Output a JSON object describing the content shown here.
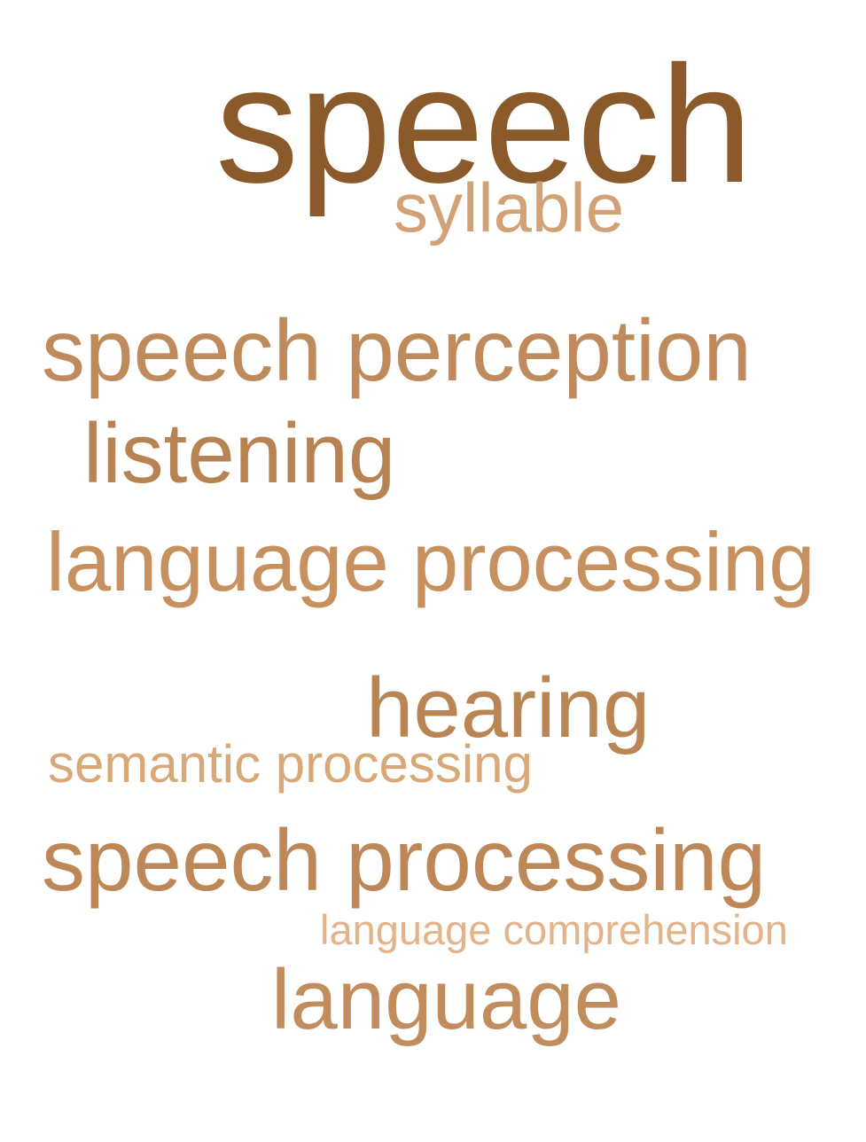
{
  "word_cloud": {
    "words": [
      {
        "id": "w-speech",
        "text": "speech",
        "color": "#8b5a2b"
      },
      {
        "id": "w-syllable",
        "text": "syllable",
        "color": "#d2a175"
      },
      {
        "id": "w-speech-perception",
        "text": "speech perception",
        "color": "#c08b5c"
      },
      {
        "id": "w-listening",
        "text": "listening",
        "color": "#b88352"
      },
      {
        "id": "w-language-processing",
        "text": "language processing",
        "color": "#c6915f"
      },
      {
        "id": "w-hearing",
        "text": "hearing",
        "color": "#b98553"
      },
      {
        "id": "w-semantic-processing",
        "text": "semantic processing",
        "color": "#d9a877"
      },
      {
        "id": "w-speech-processing",
        "text": "speech processing",
        "color": "#bd8757"
      },
      {
        "id": "w-language-comprehension",
        "text": "language comprehension",
        "color": "#e3b489"
      },
      {
        "id": "w-language",
        "text": "language",
        "color": "#c18d5d"
      }
    ]
  }
}
